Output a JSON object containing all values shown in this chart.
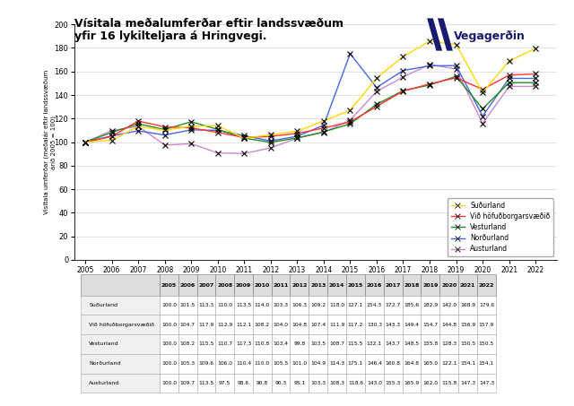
{
  "title_line1": "Vísitala meðalumferðar eftir landssvæðum",
  "title_line2": "yfir 16 lykilteljara á Hringvegi.",
  "ylabel_line1": "Vísitala umferðar (meðalár eftir landssvæðum",
  "ylabel_line2": "áríð 2005 = 100)",
  "years": [
    2005,
    2006,
    2007,
    2008,
    2009,
    2010,
    2011,
    2012,
    2013,
    2014,
    2015,
    2016,
    2017,
    2018,
    2019,
    2020,
    2021,
    2022
  ],
  "series_names": [
    "Suðurland",
    "Við höfuðborgarsvæðið",
    "Vesturland",
    "Norðurland",
    "Austurland"
  ],
  "series_colors": [
    "#FFD700",
    "#FF3333",
    "#228B22",
    "#4169E1",
    "#CC88CC"
  ],
  "series_values": [
    [
      100.0,
      101.5,
      113.3,
      110.0,
      113.5,
      114.0,
      103.3,
      106.3,
      109.2,
      118.0,
      127.1,
      154.3,
      172.7,
      185.6,
      182.9,
      142.0,
      168.9,
      179.6
    ],
    [
      100.0,
      104.7,
      117.9,
      112.9,
      112.1,
      108.2,
      104.0,
      104.8,
      107.4,
      111.9,
      117.2,
      130.3,
      143.3,
      149.4,
      154.7,
      144.8,
      156.9,
      157.9
    ],
    [
      100.0,
      108.2,
      115.5,
      110.7,
      117.3,
      110.8,
      103.4,
      99.8,
      103.5,
      108.7,
      115.5,
      132.1,
      143.7,
      148.5,
      155.8,
      128.3,
      150.5,
      150.5
    ],
    [
      100.0,
      105.3,
      109.6,
      106.0,
      110.4,
      110.0,
      105.5,
      101.0,
      104.9,
      114.3,
      175.1,
      146.4,
      160.8,
      164.8,
      165.0,
      122.1,
      154.1,
      154.1
    ],
    [
      100.0,
      109.7,
      113.5,
      97.5,
      98.6,
      90.8,
      90.3,
      95.1,
      103.3,
      108.3,
      118.6,
      143.0,
      155.3,
      165.9,
      162.0,
      115.8,
      147.3,
      147.3
    ]
  ],
  "ylim": [
    0,
    200
  ],
  "yticks": [
    0,
    20,
    40,
    60,
    80,
    100,
    120,
    140,
    160,
    180,
    200
  ],
  "background_color": "#FFFFFF",
  "logo_text": "Vegagerðin",
  "table_row_labels": [
    "Suðurland",
    "Við höfuðborgarsvæðið",
    "Vesturland",
    "Norðurland",
    "Austurland"
  ]
}
